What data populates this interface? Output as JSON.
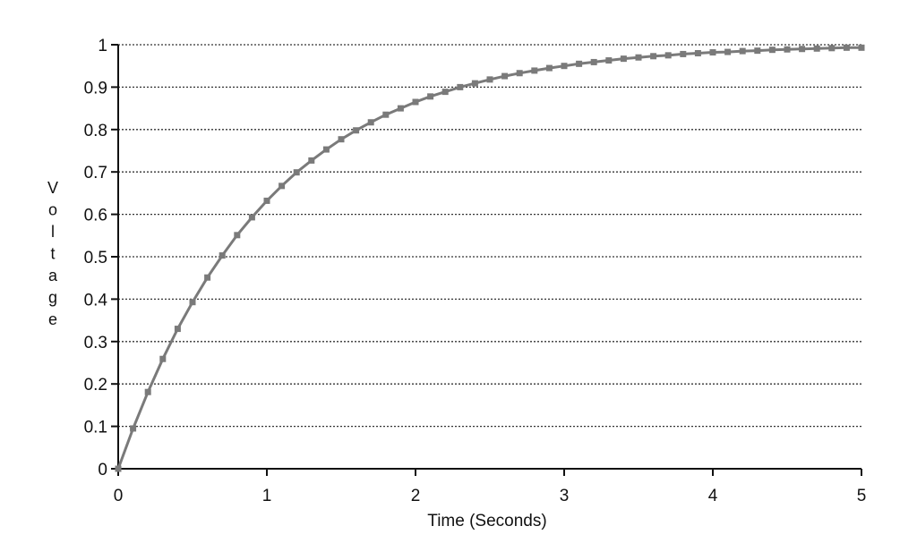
{
  "chart_data": {
    "type": "line",
    "title": "",
    "xlabel": "Time (Seconds)",
    "ylabel": "Voltage",
    "xlim": [
      0,
      5
    ],
    "ylim": [
      0,
      1
    ],
    "x_ticks": [
      "0",
      "1",
      "2",
      "3",
      "4",
      "5"
    ],
    "y_ticks": [
      "0",
      "0.1",
      "0.2",
      "0.3",
      "0.4",
      "0.5",
      "0.6",
      "0.7",
      "0.8",
      "0.9",
      "1"
    ],
    "grid": "horizontal-dotted",
    "series": [
      {
        "color": "#7a7a7a",
        "marker": "square",
        "x": [
          0,
          0.1,
          0.2,
          0.3,
          0.4,
          0.5,
          0.6,
          0.7,
          0.8,
          0.9,
          1.0,
          1.1,
          1.2,
          1.3,
          1.4,
          1.5,
          1.6,
          1.7,
          1.8,
          1.9,
          2.0,
          2.1,
          2.2,
          2.3,
          2.4,
          2.5,
          2.6,
          2.7,
          2.8,
          2.9,
          3.0,
          3.1,
          3.2,
          3.3,
          3.4,
          3.5,
          3.6,
          3.7,
          3.8,
          3.9,
          4.0,
          4.1,
          4.2,
          4.3,
          4.4,
          4.5,
          4.6,
          4.7,
          4.8,
          4.9,
          5.0
        ],
        "values": [
          0,
          0.095,
          0.181,
          0.259,
          0.33,
          0.393,
          0.451,
          0.503,
          0.551,
          0.593,
          0.632,
          0.667,
          0.699,
          0.727,
          0.753,
          0.777,
          0.798,
          0.817,
          0.835,
          0.85,
          0.865,
          0.878,
          0.889,
          0.9,
          0.909,
          0.918,
          0.926,
          0.933,
          0.939,
          0.945,
          0.95,
          0.955,
          0.959,
          0.963,
          0.967,
          0.97,
          0.973,
          0.975,
          0.978,
          0.98,
          0.982,
          0.983,
          0.985,
          0.986,
          0.988,
          0.989,
          0.99,
          0.991,
          0.992,
          0.993,
          0.993
        ]
      }
    ]
  }
}
